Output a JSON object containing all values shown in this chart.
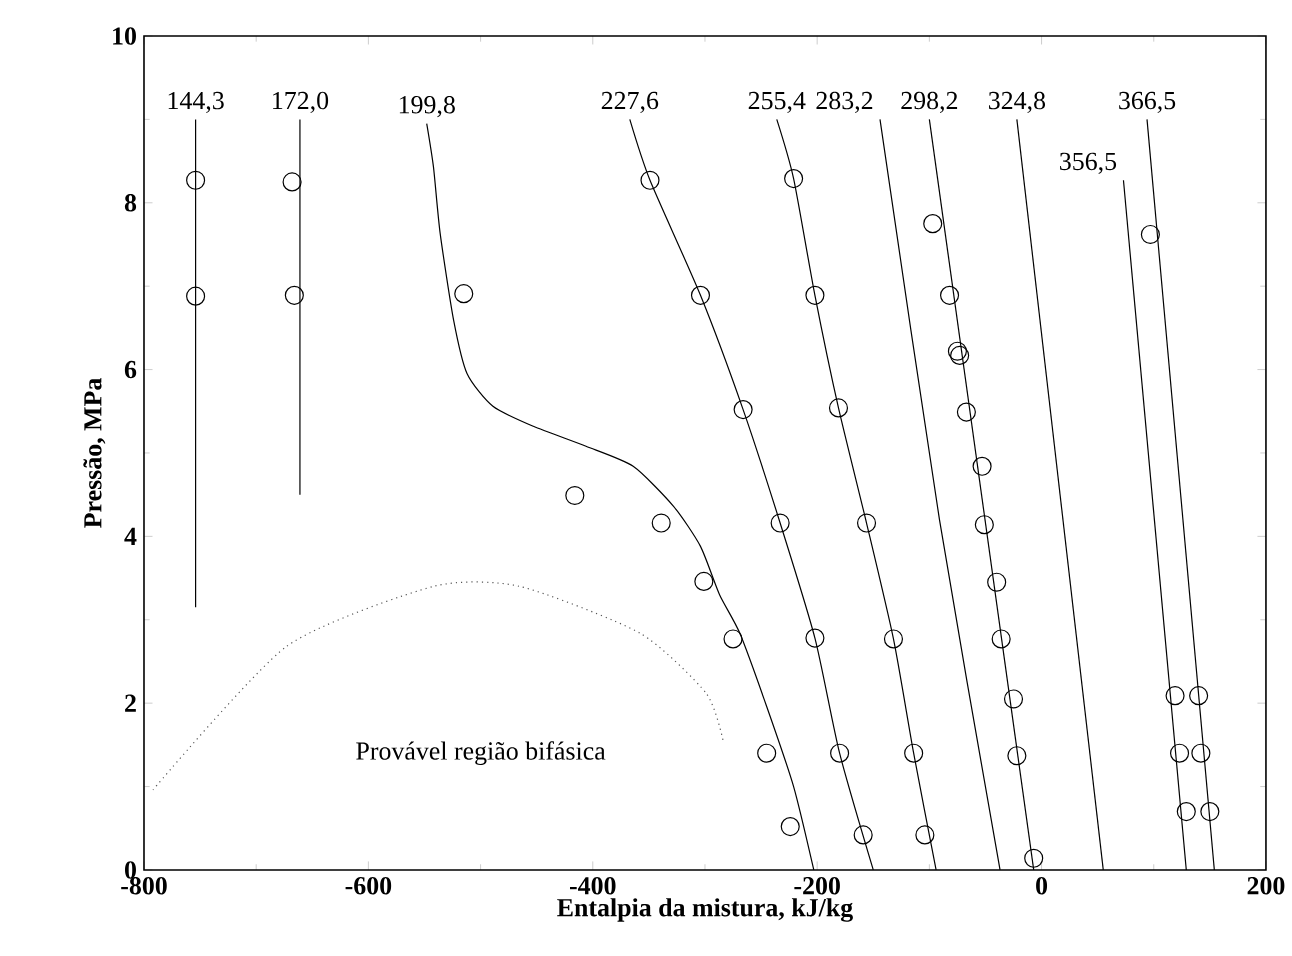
{
  "chart_data": {
    "type": "line",
    "xlabel": "Entalpia da mistura, kJ/kg",
    "ylabel": "Pressão, MPa",
    "xlim": [
      -800,
      200
    ],
    "ylim": [
      0,
      10
    ],
    "xticks": [
      -800,
      -600,
      -400,
      -200,
      0,
      200
    ],
    "yticks": [
      0,
      2,
      4,
      6,
      8,
      10
    ],
    "series": [
      {
        "name": "144,3",
        "type": "line",
        "color": "#000000",
        "x": [
          -754,
          -754
        ],
        "values": [
          9.0,
          3.15
        ]
      },
      {
        "name": "172,0",
        "type": "line",
        "color": "#000000",
        "x": [
          -661,
          -661
        ],
        "values": [
          9.0,
          4.5
        ]
      },
      {
        "name": "199,8",
        "type": "line",
        "color": "#000000",
        "x": [
          -548,
          -542,
          -536,
          -524,
          -512,
          -489,
          -453,
          -406,
          -364,
          -328,
          -304,
          -287,
          -269,
          -245,
          -221,
          -203
        ],
        "values": [
          8.95,
          8.43,
          7.63,
          6.59,
          5.95,
          5.56,
          5.32,
          5.08,
          4.84,
          4.36,
          3.88,
          3.3,
          2.84,
          1.96,
          1.0,
          0
        ]
      },
      {
        "name": "227,6",
        "type": "line",
        "color": "#000000",
        "x": [
          -367,
          -349,
          -304,
          -266,
          -233,
          -202,
          -180,
          -150
        ],
        "values": [
          9.0,
          8.27,
          6.89,
          5.52,
          4.16,
          2.78,
          1.4,
          0
        ]
      },
      {
        "name": "255,4",
        "type": "line",
        "color": "#000000",
        "x": [
          -236,
          -221,
          -202,
          -181,
          -156,
          -132,
          -114,
          -94
        ],
        "values": [
          9.0,
          8.29,
          6.89,
          5.54,
          4.16,
          2.77,
          1.4,
          0
        ]
      },
      {
        "name": "283,2",
        "type": "line",
        "color": "#000000",
        "x": [
          -144,
          -91,
          -37
        ],
        "values": [
          9.0,
          4.2,
          0
        ]
      },
      {
        "name": "298,2",
        "type": "line",
        "color": "#000000",
        "x": [
          -100,
          -7
        ],
        "values": [
          9.0,
          0
        ]
      },
      {
        "name": "324,8",
        "type": "line",
        "color": "#000000",
        "x": [
          -22,
          55
        ],
        "values": [
          9.0,
          0
        ]
      },
      {
        "name": "356,5",
        "type": "line",
        "color": "#000000",
        "x": [
          73,
          129
        ],
        "values": [
          8.27,
          0
        ]
      },
      {
        "name": "366,5",
        "type": "line",
        "color": "#000000",
        "x": [
          94,
          154
        ],
        "values": [
          9.0,
          0
        ]
      },
      {
        "type": "line",
        "color": "#555555",
        "line_style": "dotted",
        "x": [
          -792,
          -673,
          -542,
          -465,
          -358,
          -299,
          -284
        ],
        "values": [
          0.96,
          2.68,
          3.4,
          3.4,
          2.84,
          2.12,
          1.56
        ]
      },
      {
        "type": "scatter",
        "color": "#000000",
        "marker": "circle",
        "x": [
          -754,
          -754,
          -668,
          -666,
          -515,
          -416,
          -339,
          -301,
          -275,
          -245,
          -224,
          -349,
          -304,
          -266,
          -233,
          -202,
          -180,
          -159,
          -221,
          -202,
          -181,
          -156,
          -132,
          -114,
          -104,
          -97,
          -82,
          -75,
          -73,
          -67,
          -53,
          -51,
          -40,
          -36,
          -25,
          -22,
          -7,
          97,
          119,
          140,
          123,
          142,
          129,
          150
        ],
        "values": [
          8.27,
          6.88,
          8.25,
          6.89,
          6.91,
          4.49,
          4.16,
          3.46,
          2.77,
          1.4,
          0.52,
          8.27,
          6.89,
          5.52,
          4.16,
          2.78,
          1.4,
          0.42,
          8.29,
          6.89,
          5.54,
          4.16,
          2.77,
          1.4,
          0.42,
          7.75,
          6.89,
          6.22,
          6.17,
          5.49,
          4.84,
          4.14,
          3.45,
          2.77,
          2.05,
          1.37,
          0.14,
          7.62,
          2.09,
          2.09,
          1.4,
          1.4,
          0.7,
          0.7
        ]
      }
    ],
    "annotations": [
      "Provável região bifásica"
    ]
  }
}
